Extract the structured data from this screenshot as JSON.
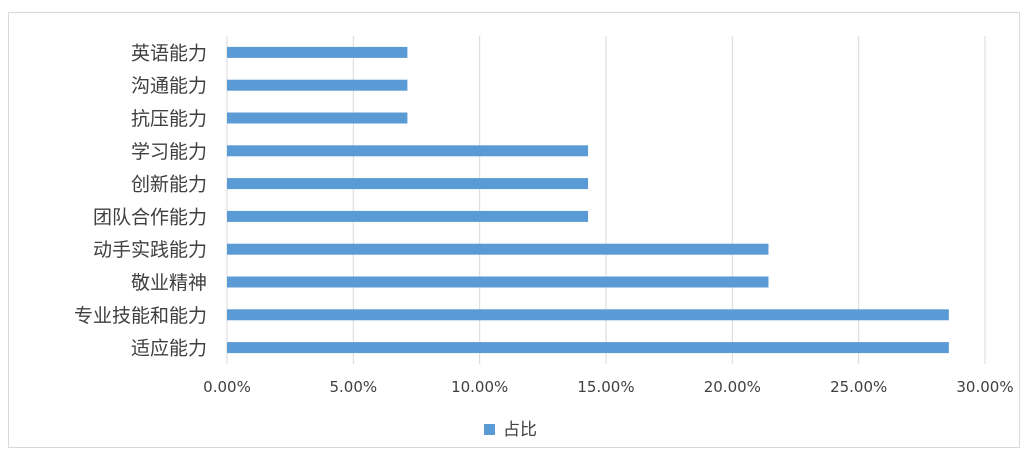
{
  "chart_data": {
    "type": "bar",
    "orientation": "horizontal",
    "categories": [
      "英语能力",
      "沟通能力",
      "抗压能力",
      "学习能力",
      "创新能力",
      "团队合作能力",
      "动手实践能力",
      "敬业精神",
      "专业技能和能力",
      "适应能力"
    ],
    "series": [
      {
        "name": "占比",
        "values": [
          0.0714,
          0.0714,
          0.0714,
          0.1429,
          0.1429,
          0.1429,
          0.2143,
          0.2143,
          0.2857,
          0.2857
        ]
      }
    ],
    "xlim": [
      0,
      0.3
    ],
    "x_ticks": [
      "0.00%",
      "5.00%",
      "10.00%",
      "15.00%",
      "20.00%",
      "25.00%",
      "30.00%"
    ],
    "grid": "vertical",
    "legend": "bottom",
    "bar_color": "#5b9bd5"
  }
}
